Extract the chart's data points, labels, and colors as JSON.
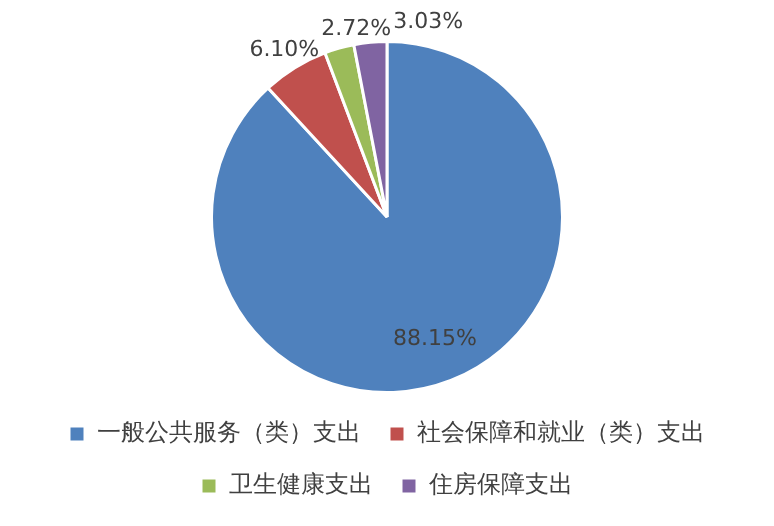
{
  "chart_data": {
    "type": "pie",
    "categories": [
      "一般公共服务（类）支出",
      "社会保障和就业（类）支出",
      "卫生健康支出",
      "住房保障支出"
    ],
    "values": [
      88.15,
      6.1,
      2.72,
      3.03
    ],
    "colors": [
      "#4f81bd",
      "#c0504d",
      "#9bbb59",
      "#8064a2"
    ],
    "value_labels": [
      "88.15%",
      "6.10%",
      "2.72%",
      "3.03%"
    ],
    "legend": "bottom"
  }
}
